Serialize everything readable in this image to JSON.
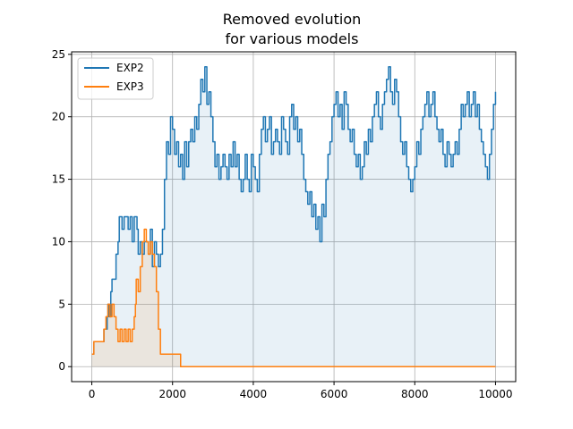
{
  "chart_data": {
    "type": "line",
    "title_line1": "Removed evolution",
    "title_line2": "for various models",
    "xlabel": "",
    "ylabel": "",
    "xlim": [
      -500,
      10500
    ],
    "ylim": [
      -1.2,
      25.2
    ],
    "xticks": [
      0,
      2000,
      4000,
      6000,
      8000,
      10000
    ],
    "yticks": [
      0,
      5,
      10,
      15,
      20,
      25
    ],
    "grid": true,
    "legend_position": "upper-left",
    "series": [
      {
        "name": "EXP2",
        "color": "#1f77b4",
        "points": [
          [
            0,
            1
          ],
          [
            50,
            2
          ],
          [
            250,
            2
          ],
          [
            300,
            3
          ],
          [
            380,
            4
          ],
          [
            400,
            5
          ],
          [
            430,
            4
          ],
          [
            470,
            6
          ],
          [
            500,
            7
          ],
          [
            580,
            7
          ],
          [
            600,
            9
          ],
          [
            650,
            10
          ],
          [
            680,
            12
          ],
          [
            750,
            11
          ],
          [
            800,
            12
          ],
          [
            900,
            11
          ],
          [
            950,
            12
          ],
          [
            1000,
            10
          ],
          [
            1050,
            12
          ],
          [
            1120,
            11
          ],
          [
            1150,
            9
          ],
          [
            1200,
            10
          ],
          [
            1250,
            9
          ],
          [
            1300,
            10
          ],
          [
            1400,
            9
          ],
          [
            1450,
            11
          ],
          [
            1500,
            8
          ],
          [
            1550,
            10
          ],
          [
            1600,
            9
          ],
          [
            1650,
            8
          ],
          [
            1700,
            9
          ],
          [
            1750,
            11
          ],
          [
            1800,
            15
          ],
          [
            1850,
            18
          ],
          [
            1900,
            17
          ],
          [
            1950,
            20
          ],
          [
            2000,
            19
          ],
          [
            2050,
            17
          ],
          [
            2100,
            18
          ],
          [
            2150,
            16
          ],
          [
            2200,
            17
          ],
          [
            2250,
            15
          ],
          [
            2300,
            18
          ],
          [
            2350,
            16
          ],
          [
            2400,
            18
          ],
          [
            2450,
            19
          ],
          [
            2500,
            18
          ],
          [
            2550,
            20
          ],
          [
            2600,
            19
          ],
          [
            2650,
            21
          ],
          [
            2700,
            23
          ],
          [
            2750,
            22
          ],
          [
            2800,
            24
          ],
          [
            2850,
            21
          ],
          [
            2900,
            22
          ],
          [
            2950,
            20
          ],
          [
            3000,
            18
          ],
          [
            3050,
            16
          ],
          [
            3100,
            17
          ],
          [
            3150,
            15
          ],
          [
            3200,
            16
          ],
          [
            3250,
            17
          ],
          [
            3300,
            16
          ],
          [
            3350,
            15
          ],
          [
            3400,
            17
          ],
          [
            3450,
            16
          ],
          [
            3500,
            18
          ],
          [
            3550,
            16
          ],
          [
            3600,
            17
          ],
          [
            3650,
            15
          ],
          [
            3700,
            14
          ],
          [
            3750,
            15
          ],
          [
            3800,
            17
          ],
          [
            3850,
            15
          ],
          [
            3900,
            14
          ],
          [
            3950,
            17
          ],
          [
            4000,
            16
          ],
          [
            4050,
            15
          ],
          [
            4100,
            14
          ],
          [
            4150,
            17
          ],
          [
            4200,
            19
          ],
          [
            4250,
            20
          ],
          [
            4300,
            18
          ],
          [
            4350,
            19
          ],
          [
            4400,
            20
          ],
          [
            4450,
            17
          ],
          [
            4500,
            18
          ],
          [
            4550,
            19
          ],
          [
            4600,
            18
          ],
          [
            4650,
            17
          ],
          [
            4700,
            20
          ],
          [
            4750,
            19
          ],
          [
            4800,
            18
          ],
          [
            4850,
            17
          ],
          [
            4900,
            20
          ],
          [
            4950,
            21
          ],
          [
            5000,
            19
          ],
          [
            5050,
            20
          ],
          [
            5100,
            18
          ],
          [
            5150,
            19
          ],
          [
            5200,
            17
          ],
          [
            5250,
            15
          ],
          [
            5300,
            14
          ],
          [
            5350,
            13
          ],
          [
            5400,
            14
          ],
          [
            5450,
            12
          ],
          [
            5500,
            13
          ],
          [
            5550,
            11
          ],
          [
            5600,
            12
          ],
          [
            5650,
            10
          ],
          [
            5700,
            13
          ],
          [
            5750,
            12
          ],
          [
            5800,
            15
          ],
          [
            5850,
            17
          ],
          [
            5900,
            18
          ],
          [
            5950,
            20
          ],
          [
            6000,
            21
          ],
          [
            6050,
            22
          ],
          [
            6100,
            20
          ],
          [
            6150,
            21
          ],
          [
            6200,
            19
          ],
          [
            6250,
            22
          ],
          [
            6300,
            21
          ],
          [
            6350,
            19
          ],
          [
            6400,
            18
          ],
          [
            6450,
            19
          ],
          [
            6500,
            17
          ],
          [
            6550,
            16
          ],
          [
            6600,
            17
          ],
          [
            6650,
            15
          ],
          [
            6700,
            16
          ],
          [
            6750,
            18
          ],
          [
            6800,
            17
          ],
          [
            6850,
            19
          ],
          [
            6900,
            18
          ],
          [
            6950,
            20
          ],
          [
            7000,
            21
          ],
          [
            7050,
            22
          ],
          [
            7100,
            20
          ],
          [
            7150,
            19
          ],
          [
            7200,
            21
          ],
          [
            7250,
            22
          ],
          [
            7300,
            23
          ],
          [
            7350,
            24
          ],
          [
            7400,
            22
          ],
          [
            7450,
            21
          ],
          [
            7500,
            23
          ],
          [
            7550,
            22
          ],
          [
            7600,
            20
          ],
          [
            7650,
            18
          ],
          [
            7700,
            17
          ],
          [
            7750,
            18
          ],
          [
            7800,
            16
          ],
          [
            7850,
            15
          ],
          [
            7900,
            14
          ],
          [
            7950,
            15
          ],
          [
            8000,
            16
          ],
          [
            8050,
            18
          ],
          [
            8100,
            17
          ],
          [
            8150,
            19
          ],
          [
            8200,
            20
          ],
          [
            8250,
            21
          ],
          [
            8300,
            22
          ],
          [
            8350,
            20
          ],
          [
            8400,
            21
          ],
          [
            8450,
            22
          ],
          [
            8500,
            20
          ],
          [
            8550,
            19
          ],
          [
            8600,
            18
          ],
          [
            8650,
            19
          ],
          [
            8700,
            17
          ],
          [
            8750,
            16
          ],
          [
            8800,
            18
          ],
          [
            8850,
            17
          ],
          [
            8900,
            16
          ],
          [
            8950,
            17
          ],
          [
            9000,
            18
          ],
          [
            9050,
            17
          ],
          [
            9100,
            19
          ],
          [
            9150,
            21
          ],
          [
            9200,
            20
          ],
          [
            9250,
            21
          ],
          [
            9300,
            22
          ],
          [
            9350,
            20
          ],
          [
            9400,
            21
          ],
          [
            9450,
            22
          ],
          [
            9500,
            20
          ],
          [
            9550,
            21
          ],
          [
            9600,
            19
          ],
          [
            9650,
            18
          ],
          [
            9700,
            17
          ],
          [
            9750,
            16
          ],
          [
            9800,
            15
          ],
          [
            9850,
            17
          ],
          [
            9900,
            19
          ],
          [
            9950,
            21
          ],
          [
            10000,
            22
          ]
        ]
      },
      {
        "name": "EXP3",
        "color": "#ff7f0e",
        "points": [
          [
            0,
            1
          ],
          [
            50,
            2
          ],
          [
            250,
            2
          ],
          [
            300,
            3
          ],
          [
            350,
            4
          ],
          [
            400,
            5
          ],
          [
            450,
            4
          ],
          [
            500,
            5
          ],
          [
            550,
            4
          ],
          [
            600,
            3
          ],
          [
            650,
            2
          ],
          [
            700,
            3
          ],
          [
            750,
            2
          ],
          [
            800,
            3
          ],
          [
            850,
            2
          ],
          [
            900,
            3
          ],
          [
            950,
            2
          ],
          [
            1000,
            3
          ],
          [
            1050,
            4
          ],
          [
            1080,
            5
          ],
          [
            1100,
            7
          ],
          [
            1150,
            6
          ],
          [
            1200,
            8
          ],
          [
            1250,
            10
          ],
          [
            1300,
            11
          ],
          [
            1350,
            10
          ],
          [
            1400,
            9
          ],
          [
            1450,
            10
          ],
          [
            1500,
            9
          ],
          [
            1550,
            8
          ],
          [
            1600,
            6
          ],
          [
            1650,
            3
          ],
          [
            1700,
            1
          ],
          [
            1750,
            1
          ],
          [
            2150,
            1
          ],
          [
            2200,
            0
          ],
          [
            10000,
            0
          ]
        ]
      }
    ]
  }
}
